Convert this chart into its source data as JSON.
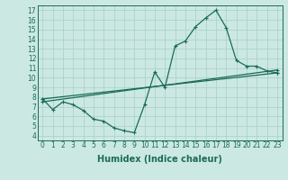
{
  "xlabel": "Humidex (Indice chaleur)",
  "xlim": [
    -0.5,
    23.5
  ],
  "ylim": [
    3.5,
    17.5
  ],
  "xticks": [
    0,
    1,
    2,
    3,
    4,
    5,
    6,
    7,
    8,
    9,
    10,
    11,
    12,
    13,
    14,
    15,
    16,
    17,
    18,
    19,
    20,
    21,
    22,
    23
  ],
  "yticks": [
    4,
    5,
    6,
    7,
    8,
    9,
    10,
    11,
    12,
    13,
    14,
    15,
    16,
    17
  ],
  "bg_color": "#cce8e2",
  "grid_color": "#aad4cc",
  "line_color": "#1a6b5a",
  "line1_x": [
    0,
    1,
    2,
    3,
    4,
    5,
    6,
    7,
    8,
    9,
    10,
    11,
    12,
    13,
    14,
    15,
    16,
    17,
    18,
    19,
    20,
    21,
    22,
    23
  ],
  "line1_y": [
    7.8,
    6.7,
    7.5,
    7.2,
    6.6,
    5.7,
    5.5,
    4.8,
    4.5,
    4.3,
    7.2,
    10.6,
    9.0,
    13.3,
    13.8,
    15.3,
    16.2,
    17.0,
    15.2,
    11.8,
    11.2,
    11.2,
    10.7,
    10.5
  ],
  "line2_x": [
    0,
    23
  ],
  "line2_y": [
    7.8,
    10.5
  ],
  "line3_x": [
    0,
    23
  ],
  "line3_y": [
    7.5,
    10.8
  ],
  "fontsize_ticks": 5.5,
  "fontsize_label": 7.0
}
